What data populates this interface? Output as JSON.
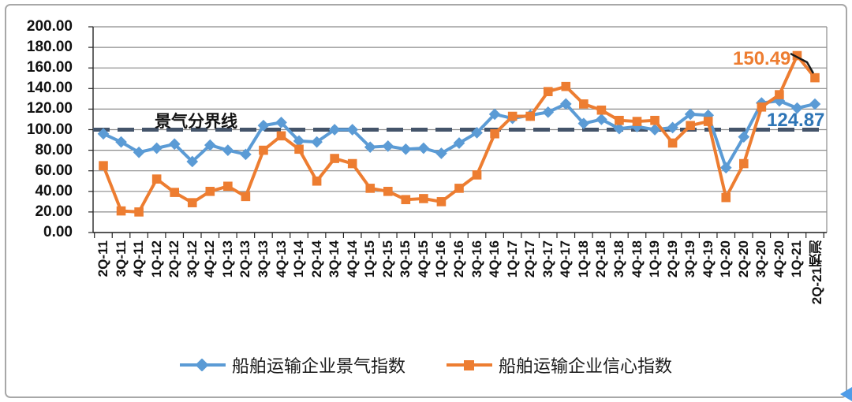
{
  "chart_data": {
    "type": "line",
    "title": "",
    "xlabel": "",
    "ylabel": "",
    "ylim": [
      0,
      200
    ],
    "y_tick_step": 20,
    "y_tick_labels": [
      "0.00",
      "20.00",
      "40.00",
      "60.00",
      "80.00",
      "100.00",
      "120.00",
      "140.00",
      "160.00",
      "180.00",
      "200.00"
    ],
    "grid": "horizontal",
    "legend_position": "bottom",
    "categories": [
      "2Q-11",
      "3Q-11",
      "4Q-11",
      "1Q-12",
      "2Q-12",
      "3Q-12",
      "4Q-12",
      "1Q-13",
      "2Q-13",
      "3Q-13",
      "4Q-13",
      "1Q-14",
      "2Q-14",
      "3Q-14",
      "4Q-14",
      "1Q-15",
      "2Q-15",
      "3Q-15",
      "4Q-15",
      "1Q-16",
      "2Q-16",
      "3Q-16",
      "4Q-16",
      "1Q-17",
      "2Q-17",
      "3Q-17",
      "4Q-17",
      "1Q-18",
      "2Q-18",
      "3Q-18",
      "4Q-18",
      "1Q-19",
      "2Q-19",
      "3Q-19",
      "4Q-19",
      "1Q-20",
      "2Q-20",
      "3Q-20",
      "4Q-20",
      "1Q-21",
      "2Q-21预测"
    ],
    "series": [
      {
        "name": "船舶运输企业景气指数",
        "color": "#5B9BD5",
        "marker": "diamond",
        "values": [
          96,
          88,
          78,
          82,
          86,
          69,
          85,
          80,
          76,
          104,
          107,
          89,
          88,
          100,
          100,
          83,
          84,
          81,
          82,
          77,
          87,
          97,
          115,
          111,
          114,
          117,
          125,
          106,
          110,
          101,
          103,
          100,
          102,
          115,
          114,
          63,
          93,
          126,
          128,
          121,
          124.87
        ]
      },
      {
        "name": "船舶运输企业信心指数",
        "color": "#ED7D31",
        "marker": "square",
        "values": [
          65,
          21,
          20,
          52,
          39,
          29,
          40,
          45,
          35,
          80,
          94,
          81,
          50,
          72,
          67,
          43,
          40,
          32,
          33,
          30,
          43,
          56,
          96,
          113,
          113,
          137,
          142,
          125,
          119,
          109,
          108,
          109,
          87,
          104,
          108,
          34,
          67,
          122,
          134,
          172,
          150.49
        ]
      }
    ],
    "divider": {
      "label": "景气分界线",
      "value": 100,
      "color": "#44546A"
    },
    "annotations": [
      {
        "text": "150.49",
        "color": "#ED7D31",
        "x": 929,
        "y": 61
      },
      {
        "text": "124.87",
        "color": "#2E75B6",
        "x": 972,
        "y": 139
      }
    ],
    "colors": {
      "gridline": "#8c8c8c",
      "axis": "#262626",
      "leader_line": "#1a1a1a",
      "corner_handle": "#4f9ce8"
    }
  }
}
